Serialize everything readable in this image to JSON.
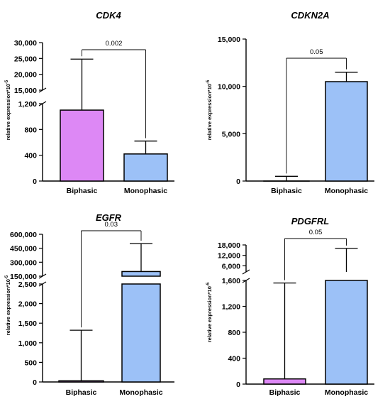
{
  "chart_data": [
    {
      "type": "bar",
      "title": "CDK4",
      "ylabel": "relative expression*10",
      "ylabel_exp": "-5",
      "categories": [
        "Biphasic",
        "Monophasic"
      ],
      "values": [
        1100,
        420
      ],
      "error_upper": [
        24800,
        620
      ],
      "colors": [
        "#dd88f5",
        "#9cc1f7"
      ],
      "axis_break": true,
      "ylim_lower": [
        0,
        1200
      ],
      "ylim_upper": [
        15000,
        30000
      ],
      "ticks_lower": [
        "0",
        "400",
        "800",
        "1,200"
      ],
      "ticks_upper": [
        "15,000",
        "20,000",
        "25,000",
        "30,000"
      ],
      "pvalue": "0.002"
    },
    {
      "type": "bar",
      "title": "CDKN2A",
      "ylabel": "relative expression*10",
      "ylabel_exp": "-5",
      "categories": [
        "Biphasic",
        "Monophasic"
      ],
      "values": [
        0,
        10500
      ],
      "error_upper": [
        500,
        11500
      ],
      "colors": [
        "#dd88f5",
        "#9cc1f7"
      ],
      "axis_break": false,
      "ylim": [
        0,
        15000
      ],
      "ticks": [
        "0",
        "5,000",
        "10,000",
        "15,000"
      ],
      "pvalue": "0.05"
    },
    {
      "type": "bar",
      "title": "EGFR",
      "ylabel": "relative expression*10",
      "ylabel_exp": "-5",
      "categories": [
        "Biphasic",
        "Monophasic"
      ],
      "values": [
        30,
        200000
      ],
      "error_upper": [
        1320,
        500000
      ],
      "colors": [
        "#dd88f5",
        "#9cc1f7"
      ],
      "axis_break": true,
      "ylim_lower": [
        0,
        2500
      ],
      "ylim_upper": [
        150000,
        600000
      ],
      "ticks_lower": [
        "0",
        "500",
        "1,000",
        "1,500",
        "2,000",
        "2,500"
      ],
      "ticks_upper": [
        "150,000",
        "300,000",
        "450,000",
        "600,000"
      ],
      "pvalue": "0.03"
    },
    {
      "type": "bar",
      "title": "PDGFRL",
      "ylabel": "relative expression*10",
      "ylabel_exp": "-5",
      "categories": [
        "Biphasic",
        "Monophasic"
      ],
      "values": [
        80,
        2500
      ],
      "error_upper": [
        1560,
        16000
      ],
      "colors": [
        "#dd88f5",
        "#9cc1f7"
      ],
      "axis_break": true,
      "ylim_lower": [
        0,
        1600
      ],
      "ylim_upper": [
        2500,
        18000
      ],
      "ticks_lower": [
        "0",
        "400",
        "800",
        "1,200",
        "1,600"
      ],
      "ticks_upper": [
        "6,000",
        "12,000",
        "18,000"
      ],
      "pvalue": "0.05"
    }
  ]
}
